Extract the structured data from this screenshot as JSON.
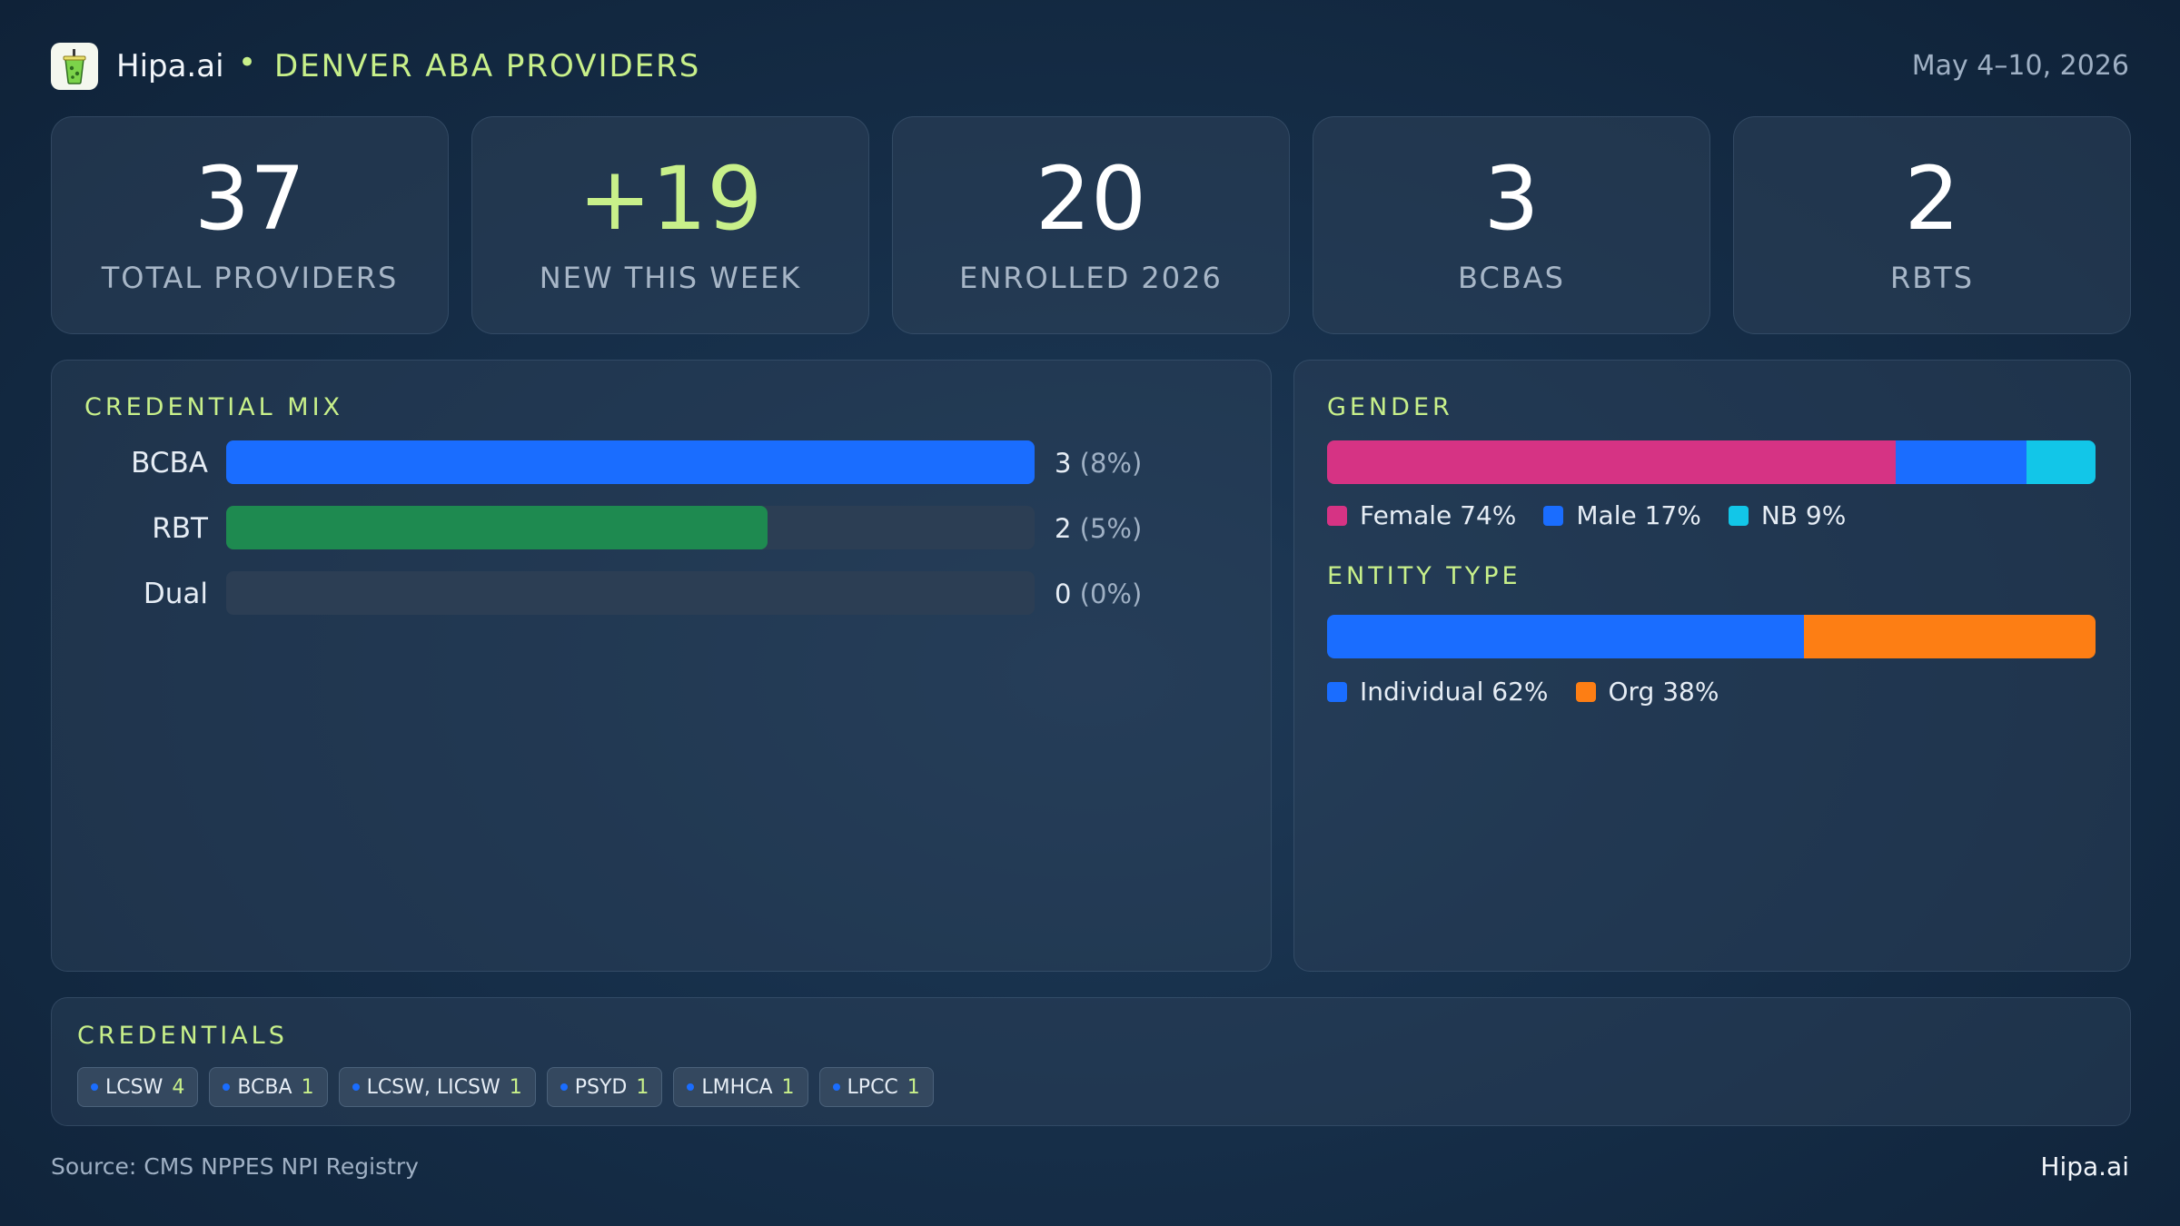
{
  "header": {
    "brand": "Hipa.ai",
    "separator": "•",
    "subtitle": "DENVER ABA PROVIDERS",
    "date": "May 4–10, 2026"
  },
  "stats": [
    {
      "value": "37",
      "label": "TOTAL PROVIDERS",
      "accent": false
    },
    {
      "value": "+19",
      "label": "NEW THIS WEEK",
      "accent": true
    },
    {
      "value": "20",
      "label": "ENROLLED 2026",
      "accent": false
    },
    {
      "value": "3",
      "label": "BCBAS",
      "accent": false
    },
    {
      "value": "2",
      "label": "RBTS",
      "accent": false
    }
  ],
  "credential_mix": {
    "title": "CREDENTIAL MIX",
    "rows": [
      {
        "name": "BCBA",
        "count": "3",
        "pct": "(8%)",
        "fill_fraction": 1.0,
        "color": "#1a6dff"
      },
      {
        "name": "RBT",
        "count": "2",
        "pct": "(5%)",
        "fill_fraction": 0.67,
        "color": "#1e8a50"
      },
      {
        "name": "Dual",
        "count": "0",
        "pct": "(0%)",
        "fill_fraction": 0.0,
        "color": "#1a6dff"
      }
    ]
  },
  "gender": {
    "title": "GENDER",
    "segments": [
      {
        "label": "Female 74%",
        "fraction": 0.74,
        "color": "#d63384"
      },
      {
        "label": "Male 17%",
        "fraction": 0.17,
        "color": "#1a6dff"
      },
      {
        "label": "NB 9%",
        "fraction": 0.09,
        "color": "#12c6e8"
      }
    ]
  },
  "entity_type": {
    "title": "ENTITY TYPE",
    "segments": [
      {
        "label": "Individual 62%",
        "fraction": 0.62,
        "color": "#1a6dff"
      },
      {
        "label": "Org 38%",
        "fraction": 0.38,
        "color": "#fd7e14"
      }
    ]
  },
  "credentials": {
    "title": "CREDENTIALS",
    "chips": [
      {
        "name": "LCSW",
        "count": "4"
      },
      {
        "name": "BCBA",
        "count": "1"
      },
      {
        "name": "LCSW, LICSW",
        "count": "1"
      },
      {
        "name": "PSYD",
        "count": "1"
      },
      {
        "name": "LMHCA",
        "count": "1"
      },
      {
        "name": "LPCC",
        "count": "1"
      }
    ]
  },
  "footer": {
    "source": "Source: CMS NPPES NPI Registry",
    "brand": "Hipa.ai"
  },
  "icons": {
    "logo": "drink-cup-icon"
  }
}
